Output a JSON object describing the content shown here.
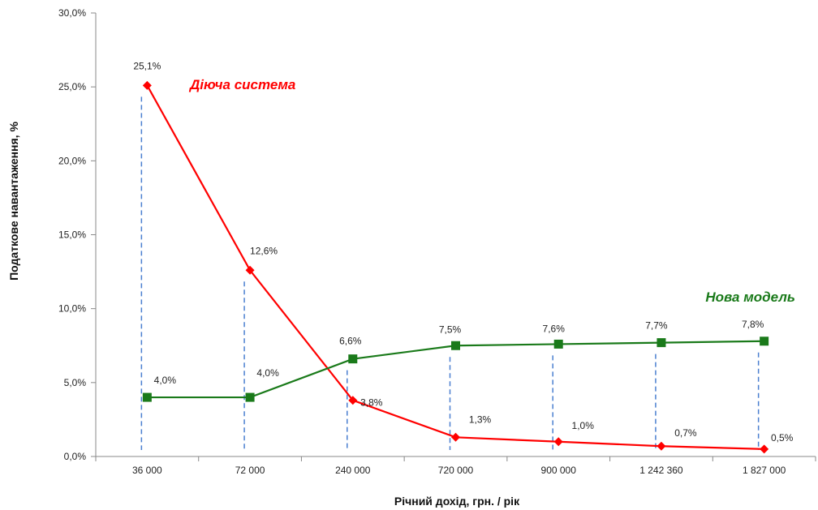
{
  "chart_data": {
    "type": "line",
    "title": "",
    "xlabel": "Річний дохід, грн. / рік",
    "ylabel": "Податкове навантаження, %",
    "ylim": [
      0,
      30
    ],
    "yticks": [
      "0,0%",
      "5,0%",
      "10,0%",
      "15,0%",
      "20,0%",
      "25,0%",
      "30,0%"
    ],
    "grid": false,
    "categories": [
      "36 000",
      "72 000",
      "240 000",
      "720 000",
      "900 000",
      "1 242 360",
      "1 827 000"
    ],
    "series": [
      {
        "name": "Діюча система",
        "color": "#ff0000",
        "marker": "diamond",
        "values": [
          25.1,
          12.6,
          3.8,
          1.3,
          1.0,
          0.7,
          0.5
        ],
        "labels": [
          "25,1%",
          "12,6%",
          "3,8%",
          "1,3%",
          "1,0%",
          "0,7%",
          "0,5%"
        ]
      },
      {
        "name": "Нова модель",
        "color": "#1a7a1a",
        "marker": "square",
        "values": [
          4.0,
          4.0,
          6.6,
          7.5,
          7.6,
          7.7,
          7.8
        ],
        "labels": [
          "4,0%",
          "4,0%",
          "6,6%",
          "7,5%",
          "7,6%",
          "7,7%",
          "7,8%"
        ]
      }
    ]
  }
}
